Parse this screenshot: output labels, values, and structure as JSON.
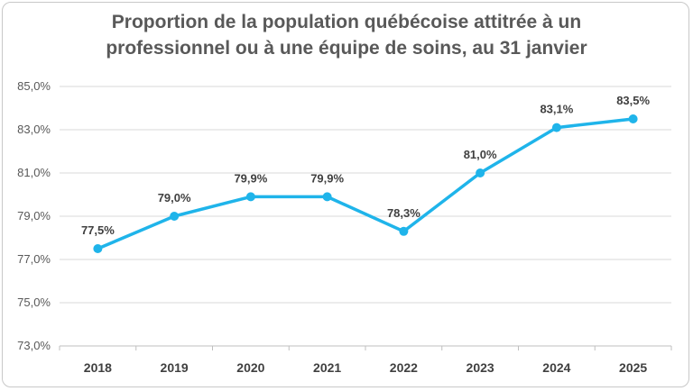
{
  "chart_data": {
    "type": "line",
    "title_lines": [
      "Proportion de la population québécoise attitrée à un",
      "professionnel ou à une équipe de soins, au 31 janvier"
    ],
    "categories": [
      "2018",
      "2019",
      "2020",
      "2021",
      "2022",
      "2023",
      "2024",
      "2025"
    ],
    "values": [
      77.5,
      79.0,
      79.9,
      79.9,
      78.3,
      81.0,
      83.1,
      83.5
    ],
    "data_labels": [
      "77,5%",
      "79,0%",
      "79,9%",
      "79,9%",
      "78,3%",
      "81,0%",
      "83,1%",
      "83,5%"
    ],
    "y_ticks": [
      73,
      75,
      77,
      79,
      81,
      83,
      85
    ],
    "y_tick_labels": [
      "73,0%",
      "75,0%",
      "77,0%",
      "79,0%",
      "81,0%",
      "83,0%",
      "85,0%"
    ],
    "ylim": [
      73,
      85
    ],
    "grid": true,
    "line_color": "#1fb4ea",
    "xlabel": "",
    "ylabel": ""
  }
}
